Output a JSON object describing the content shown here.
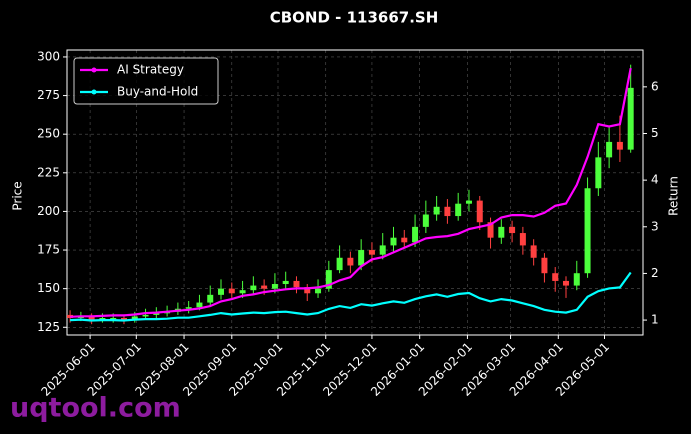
{
  "chart_data": {
    "type": "candlestick",
    "title": "CBOND - 113667.SH",
    "y_label": "Price",
    "y2_label": "Return",
    "watermark": "uqtool.com",
    "up_color": "#4cff3c",
    "down_color": "#ff4040",
    "grid": true,
    "legend": "upper left",
    "xlim": [
      "2025-05-17",
      "2026-05-26"
    ],
    "xticks": [
      "2025-06-01",
      "2025-07-01",
      "2025-08-01",
      "2025-09-01",
      "2025-10-01",
      "2025-11-01",
      "2025-12-01",
      "2026-01-01",
      "2026-02-01",
      "2026-03-01",
      "2026-04-01",
      "2026-05-01"
    ],
    "ylim": [
      120,
      304.5
    ],
    "yticks": [
      125,
      150,
      175,
      200,
      225,
      250,
      275,
      300
    ],
    "y2lim": [
      0.68,
      6.79
    ],
    "y2ticks": [
      1,
      2,
      3,
      4,
      5,
      6
    ],
    "x": [
      "2025-05-19",
      "2025-05-26",
      "2025-06-02",
      "2025-06-09",
      "2025-06-16",
      "2025-06-23",
      "2025-06-30",
      "2025-07-07",
      "2025-07-14",
      "2025-07-21",
      "2025-07-28",
      "2025-08-04",
      "2025-08-11",
      "2025-08-18",
      "2025-08-25",
      "2025-09-01",
      "2025-09-08",
      "2025-09-15",
      "2025-09-22",
      "2025-09-29",
      "2025-10-06",
      "2025-10-13",
      "2025-10-20",
      "2025-10-27",
      "2025-11-03",
      "2025-11-10",
      "2025-11-17",
      "2025-11-24",
      "2025-12-01",
      "2025-12-08",
      "2025-12-15",
      "2025-12-22",
      "2025-12-29",
      "2026-01-05",
      "2026-01-12",
      "2026-01-19",
      "2026-01-26",
      "2026-02-02",
      "2026-02-09",
      "2026-02-16",
      "2026-02-23",
      "2026-03-02",
      "2026-03-09",
      "2026-03-16",
      "2026-03-23",
      "2026-03-30",
      "2026-04-06",
      "2026-04-13",
      "2026-04-20",
      "2026-04-27",
      "2026-05-04",
      "2026-05-11",
      "2026-05-18"
    ],
    "open": [
      133,
      131,
      132,
      130,
      131,
      131,
      130,
      132,
      133,
      134,
      135,
      137,
      138,
      141,
      146,
      150,
      147,
      149,
      152,
      150,
      153,
      155,
      151,
      147,
      150,
      162,
      170,
      165,
      175,
      172,
      178,
      183,
      180,
      190,
      198,
      203,
      197,
      205,
      207,
      193,
      183,
      190,
      186,
      178,
      170,
      160,
      155,
      152,
      160,
      215,
      235,
      245,
      240
    ],
    "high": [
      136,
      135,
      134,
      134,
      134,
      133,
      135,
      137,
      138,
      139,
      141,
      142,
      146,
      152,
      156,
      154,
      155,
      158,
      156,
      160,
      161,
      158,
      153,
      156,
      168,
      178,
      174,
      182,
      180,
      186,
      190,
      188,
      198,
      207,
      210,
      208,
      212,
      214,
      210,
      196,
      195,
      194,
      190,
      182,
      173,
      164,
      158,
      168,
      222,
      245,
      255,
      262,
      295
    ],
    "low": [
      128,
      129,
      127,
      128,
      128,
      127,
      128,
      130,
      131,
      132,
      133,
      134,
      136,
      139,
      143,
      144,
      144,
      146,
      146,
      147,
      150,
      147,
      142,
      144,
      148,
      160,
      160,
      162,
      167,
      169,
      174,
      176,
      177,
      186,
      194,
      192,
      194,
      200,
      188,
      176,
      179,
      180,
      172,
      165,
      154,
      148,
      144,
      149,
      157,
      210,
      228,
      232,
      238
    ],
    "close": [
      131,
      132,
      130,
      131,
      131,
      130,
      132,
      133,
      134,
      135,
      137,
      138,
      141,
      146,
      150,
      147,
      149,
      152,
      150,
      153,
      155,
      151,
      147,
      150,
      162,
      170,
      165,
      175,
      172,
      178,
      183,
      180,
      190,
      198,
      203,
      197,
      205,
      207,
      193,
      183,
      190,
      186,
      178,
      170,
      160,
      155,
      152,
      160,
      215,
      235,
      245,
      240,
      280
    ],
    "series": [
      {
        "name": "AI Strategy",
        "color": "#ff00ff",
        "axis": "y2",
        "values": [
          1.07,
          1.08,
          1.08,
          1.09,
          1.1,
          1.1,
          1.12,
          1.15,
          1.16,
          1.18,
          1.2,
          1.22,
          1.25,
          1.3,
          1.4,
          1.45,
          1.52,
          1.55,
          1.6,
          1.63,
          1.66,
          1.68,
          1.68,
          1.7,
          1.75,
          1.85,
          1.92,
          2.15,
          2.3,
          2.35,
          2.45,
          2.55,
          2.65,
          2.75,
          2.78,
          2.8,
          2.85,
          2.95,
          3.0,
          3.05,
          3.2,
          3.25,
          3.25,
          3.22,
          3.3,
          3.45,
          3.5,
          3.9,
          4.5,
          5.2,
          5.15,
          5.2,
          6.4
        ]
      },
      {
        "name": "Buy-and-Hold",
        "color": "#00ffff",
        "axis": "y2",
        "values": [
          1.0,
          1.01,
          0.99,
          1.0,
          1.0,
          0.99,
          1.01,
          1.02,
          1.02,
          1.03,
          1.05,
          1.05,
          1.08,
          1.11,
          1.15,
          1.12,
          1.14,
          1.16,
          1.15,
          1.17,
          1.18,
          1.15,
          1.12,
          1.15,
          1.24,
          1.3,
          1.26,
          1.34,
          1.31,
          1.36,
          1.4,
          1.37,
          1.45,
          1.51,
          1.55,
          1.5,
          1.56,
          1.58,
          1.47,
          1.4,
          1.45,
          1.42,
          1.36,
          1.3,
          1.22,
          1.18,
          1.16,
          1.22,
          1.5,
          1.62,
          1.68,
          1.7,
          2.02
        ]
      }
    ]
  }
}
